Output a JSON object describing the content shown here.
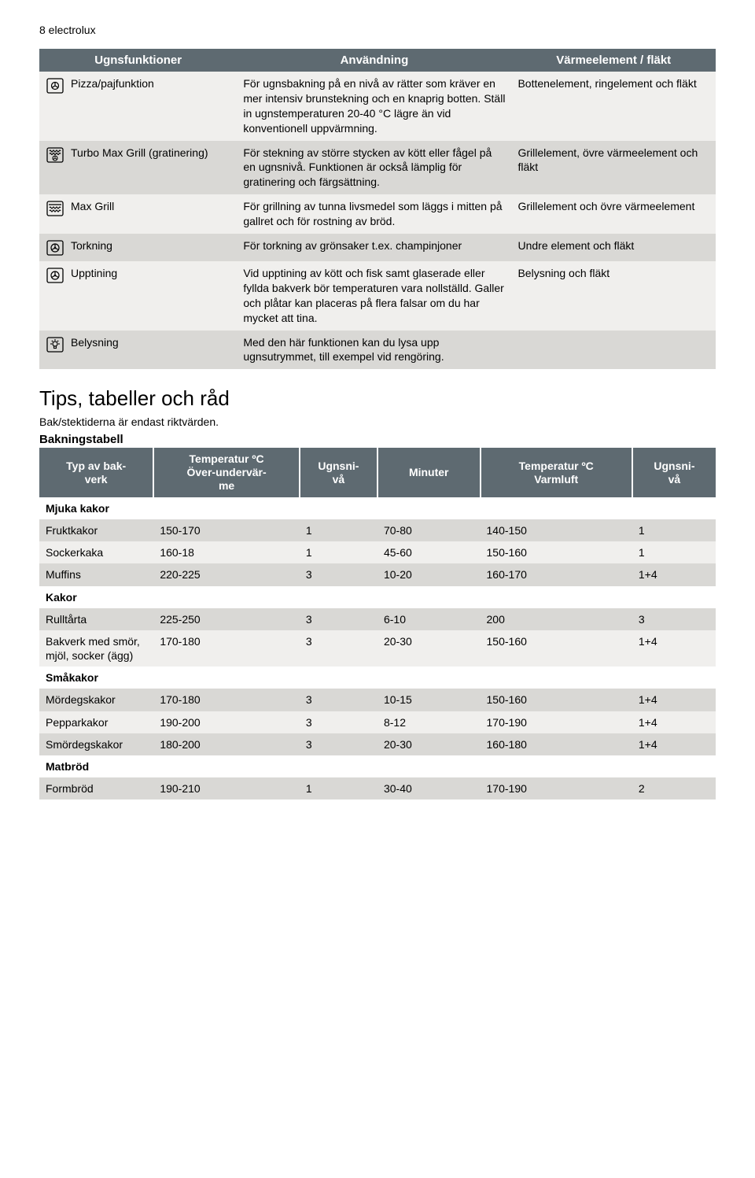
{
  "page_header": "8  electrolux",
  "functions_table": {
    "headers": [
      "Ugnsfunktioner",
      "Användning",
      "Värmeelement / fläkt"
    ],
    "rows": [
      {
        "icon": "pizza",
        "name": "Pizza/pajfunktion",
        "use": "För ugnsbakning på en nivå av rätter som kräver en mer intensiv brunstekning och en knaprig botten. Ställ in ugnstemperaturen 20-40 °C lägre än vid konventionell uppvärmning.",
        "heat": "Bottenelement, ringelement och fläkt"
      },
      {
        "icon": "turbo-max-grill",
        "name": "Turbo Max Grill (gratinering)",
        "use": "För stekning av större stycken av kött eller fågel på en ugnsnivå. Funktionen är också lämplig för gratinering och färgsättning.",
        "heat": "Grillelement, övre värmeelement och fläkt"
      },
      {
        "icon": "max-grill",
        "name": "Max Grill",
        "use": "För grillning av tunna livsmedel som läggs i mitten på gallret och för rostning av bröd.",
        "heat": "Grillelement och övre värmeelement"
      },
      {
        "icon": "fan",
        "name": "Torkning",
        "use": "För torkning av grönsaker t.ex. champinjoner",
        "heat": "Undre element och fläkt"
      },
      {
        "icon": "fan",
        "name": "Upptining",
        "use": "Vid upptining av kött och fisk samt glaserade eller fyllda bakverk bör temperaturen vara nollställd. Galler och plåtar kan placeras på flera falsar om du har mycket att tina.",
        "heat": "Belysning och fläkt"
      },
      {
        "icon": "light",
        "name": "Belysning",
        "use": "Med den här funktionen kan du lysa upp ugnsutrymmet, till exempel vid rengöring.",
        "heat": ""
      }
    ]
  },
  "tips_title": "Tips, tabeller och råd",
  "tips_sub": "Bak/stektiderna är endast riktvärden.",
  "baking_label": "Bakningstabell",
  "baking_table": {
    "headers": [
      "Typ av bakverk",
      "Temperatur ºC Över-undervärme",
      "Ugnsnivå",
      "Minuter",
      "Temperatur ºC Varmluft",
      "Ugnsnivå"
    ],
    "rows": [
      {
        "type": "section",
        "label": "Mjuka kakor"
      },
      {
        "type": "data",
        "band": "dark",
        "cells": [
          "Fruktkakor",
          "150-170",
          "1",
          "70-80",
          "140-150",
          "1"
        ]
      },
      {
        "type": "data",
        "band": "light",
        "cells": [
          "Sockerkaka",
          "160-18",
          "1",
          "45-60",
          "150-160",
          "1"
        ]
      },
      {
        "type": "data",
        "band": "dark",
        "cells": [
          "Muffins",
          "220-225",
          "3",
          "10-20",
          "160-170",
          "1+4"
        ]
      },
      {
        "type": "section",
        "label": "Kakor"
      },
      {
        "type": "data",
        "band": "dark",
        "cells": [
          "Rulltårta",
          "225-250",
          "3",
          "6-10",
          "200",
          "3"
        ]
      },
      {
        "type": "data",
        "band": "light",
        "cells": [
          "Bakverk med smör, mjöl, socker (ägg)",
          "170-180",
          "3",
          "20-30",
          "150-160",
          "1+4"
        ]
      },
      {
        "type": "section",
        "label": "Småkakor"
      },
      {
        "type": "data",
        "band": "dark",
        "cells": [
          "Mördegskakor",
          "170-180",
          "3",
          "10-15",
          "150-160",
          "1+4"
        ]
      },
      {
        "type": "data",
        "band": "light",
        "cells": [
          "Pepparkakor",
          "190-200",
          "3",
          "8-12",
          "170-190",
          "1+4"
        ]
      },
      {
        "type": "data",
        "band": "dark",
        "cells": [
          "Smördegskakor",
          "180-200",
          "3",
          "20-30",
          "160-180",
          "1+4"
        ]
      },
      {
        "type": "section",
        "label": "Matbröd"
      },
      {
        "type": "data",
        "band": "dark",
        "cells": [
          "Formbröd",
          "190-210",
          "1",
          "30-40",
          "170-190",
          "2"
        ]
      }
    ]
  }
}
